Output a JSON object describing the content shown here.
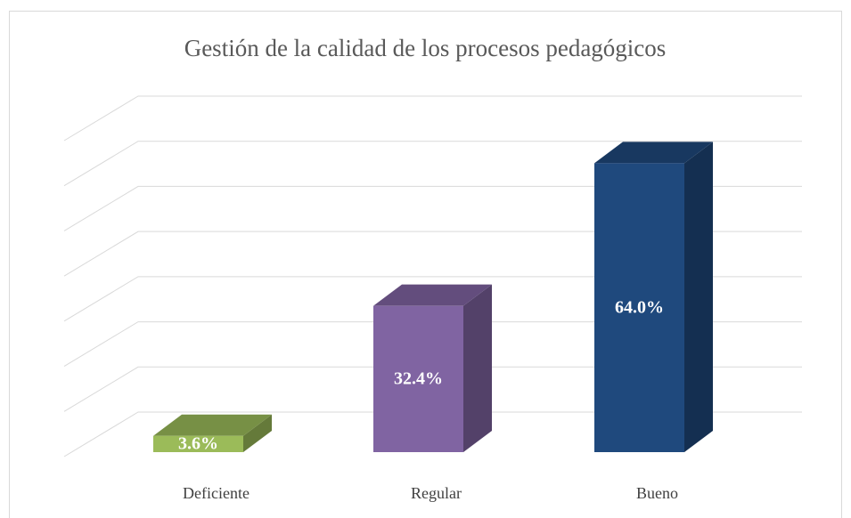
{
  "chart_data": {
    "type": "bar3d",
    "title": "Gestión de la calidad de los procesos pedagógicos",
    "categories": [
      "Deficiente",
      "Regular",
      "Bueno"
    ],
    "values": [
      3.6,
      32.4,
      64.0
    ],
    "value_labels": [
      "3.6%",
      "32.4%",
      "64.0%"
    ],
    "colors": [
      "#9bbb59",
      "#8064a2",
      "#1f497d"
    ],
    "ylim": [
      0,
      70
    ],
    "yticks": [
      0,
      10,
      20,
      30,
      40,
      50,
      60,
      70
    ],
    "grid": true
  }
}
